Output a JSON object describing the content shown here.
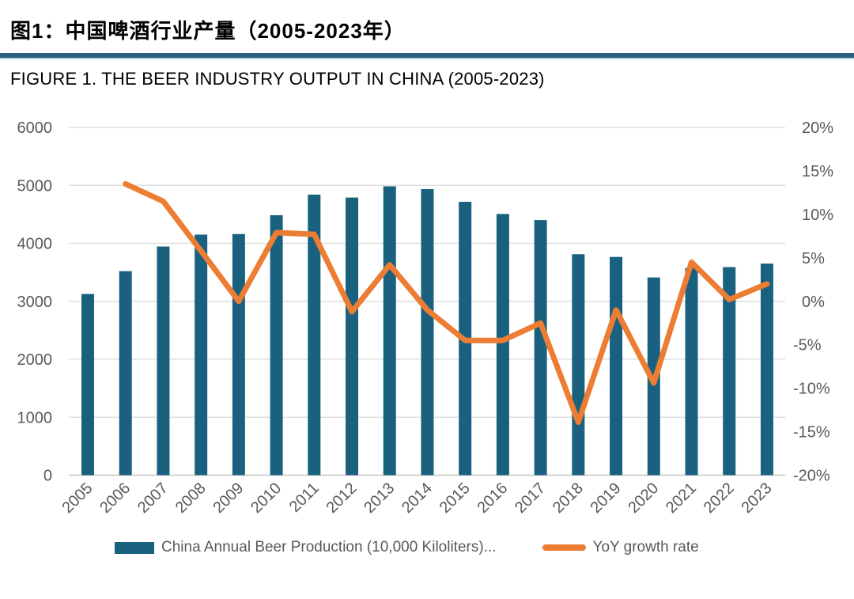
{
  "header": {
    "title_zh": "图1：中国啤酒行业产量（2005-2023年）",
    "title_en": "FIGURE 1. THE BEER INDUSTRY OUTPUT IN CHINA (2005-2023)"
  },
  "chart_data": {
    "type": "bar+line combo",
    "title": "FIGURE 1. THE BEER INDUSTRY OUTPUT IN CHINA (2005-2023)",
    "title_zh": "图1：中国啤酒行业产量（2005-2023年）",
    "categories": [
      "2005",
      "2006",
      "2007",
      "2008",
      "2009",
      "2010",
      "2011",
      "2012",
      "2013",
      "2014",
      "2015",
      "2016",
      "2017",
      "2018",
      "2019",
      "2020",
      "2021",
      "2022",
      "2023"
    ],
    "series": [
      {
        "name": "China Annual Beer Production (10,000 Kiloliters)...",
        "type": "bar",
        "axis": "left",
        "color": "#19617F",
        "values": [
          3126,
          3520,
          3945,
          4150,
          4160,
          4485,
          4840,
          4790,
          4983,
          4935,
          4716,
          4506,
          4401,
          3812,
          3765,
          3411,
          3575,
          3590,
          3650
        ]
      },
      {
        "name": "YoY growth rate",
        "type": "line",
        "axis": "right",
        "color": "#EC7D33",
        "values": [
          null,
          13.5,
          11.5,
          5.8,
          0.0,
          7.9,
          7.7,
          -1.2,
          4.2,
          -1.0,
          -4.5,
          -4.5,
          -2.5,
          -13.9,
          -1.0,
          -9.4,
          4.5,
          0.2,
          2.0
        ]
      }
    ],
    "left_axis": {
      "min": 0,
      "max": 6000,
      "step": 1000,
      "ticks": [
        "0",
        "1000",
        "2000",
        "3000",
        "4000",
        "5000",
        "6000"
      ]
    },
    "right_axis": {
      "min": -20,
      "max": 20,
      "step": 5,
      "ticks": [
        "-20%",
        "-15%",
        "-10%",
        "-5%",
        "0%",
        "5%",
        "10%",
        "15%",
        "20%"
      ]
    },
    "grid": true,
    "legend_position": "bottom",
    "xlabel": "",
    "ylabel": ""
  },
  "legend": {
    "items": [
      {
        "label": "China Annual Beer Production (10,000 Kiloliters)...",
        "swatch": "bar",
        "color": "#19617F"
      },
      {
        "label": "YoY growth rate",
        "swatch": "line",
        "color": "#EC7D33"
      }
    ]
  },
  "colors": {
    "bar": "#19617F",
    "line": "#EC7D33",
    "rule": "#2A5F7E",
    "rule_edge": "#BBD5E2",
    "gridline": "#D9D9D9",
    "axis_line": "#C6C6C6",
    "axis_text": "#595959",
    "title_text": "#000000"
  }
}
